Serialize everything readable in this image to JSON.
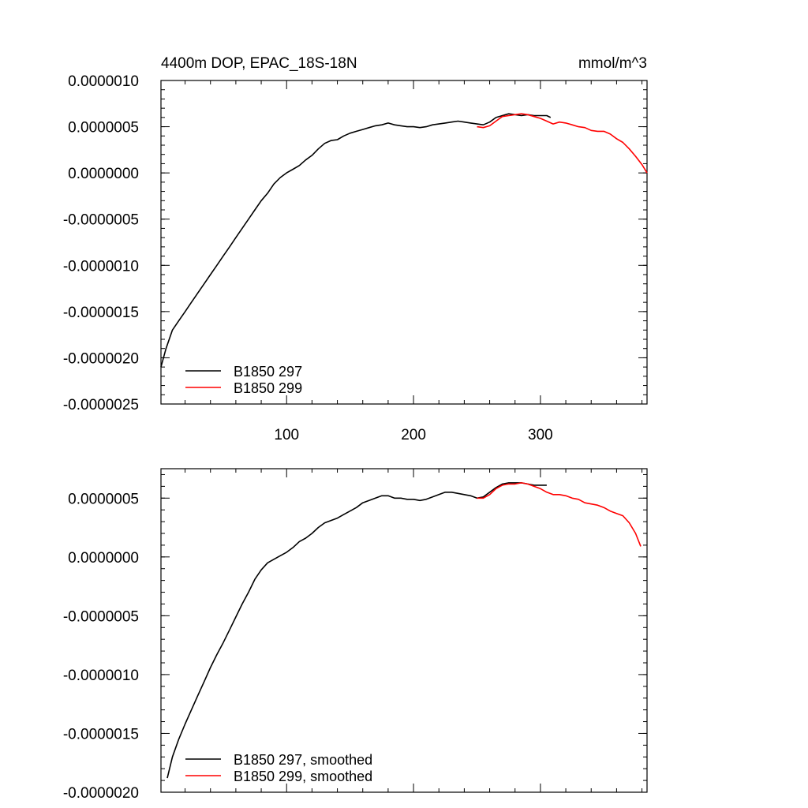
{
  "chart_data": [
    {
      "type": "line",
      "title": "4400m DOP, EPAC_18S-18N",
      "units": "mmol/m^3",
      "xlim": [
        1,
        384
      ],
      "ylim": [
        -2.5e-06,
        1e-06
      ],
      "xticks": [
        100,
        200,
        300
      ],
      "xtick_labels": [
        "100",
        "200",
        "300"
      ],
      "yticks": [
        -2.5e-06,
        -2e-06,
        -1.5e-06,
        -1e-06,
        -5e-07,
        0,
        5e-07,
        1e-06
      ],
      "ytick_labels": [
        "-0.0000025",
        "-0.0000020",
        "-0.0000015",
        "-0.0000010",
        "-0.0000005",
        "0.0000000",
        "0.0000005",
        "0.0000010"
      ],
      "legend": "bottom-left",
      "series": [
        {
          "name": "B1850 297",
          "color": "#000000",
          "x": [
            1,
            5,
            10,
            15,
            20,
            25,
            30,
            35,
            40,
            45,
            50,
            55,
            60,
            65,
            70,
            75,
            80,
            85,
            90,
            95,
            100,
            105,
            110,
            115,
            120,
            125,
            130,
            135,
            140,
            145,
            150,
            155,
            160,
            165,
            170,
            175,
            180,
            185,
            190,
            195,
            200,
            205,
            210,
            215,
            220,
            225,
            230,
            235,
            240,
            245,
            250,
            255,
            260,
            265,
            270,
            275,
            280,
            285,
            290,
            295,
            300,
            305,
            308
          ],
          "y": [
            -2.1e-06,
            -1.9e-06,
            -1.7e-06,
            -1.6e-06,
            -1.5e-06,
            -1.4e-06,
            -1.3e-06,
            -1.2e-06,
            -1.1e-06,
            -1e-06,
            -9e-07,
            -8e-07,
            -7e-07,
            -6e-07,
            -5e-07,
            -4e-07,
            -3e-07,
            -2.2e-07,
            -1.2e-07,
            -5e-08,
            0.0,
            4e-08,
            8e-08,
            1.4e-07,
            1.9e-07,
            2.6e-07,
            3.2e-07,
            3.5e-07,
            3.6e-07,
            4e-07,
            4.3e-07,
            4.5e-07,
            4.7e-07,
            4.9e-07,
            5.1e-07,
            5.2e-07,
            5.4e-07,
            5.2e-07,
            5.1e-07,
            5e-07,
            5e-07,
            4.9e-07,
            5e-07,
            5.2e-07,
            5.3e-07,
            5.4e-07,
            5.5e-07,
            5.6e-07,
            5.5e-07,
            5.4e-07,
            5.3e-07,
            5.2e-07,
            5.5e-07,
            6e-07,
            6.2e-07,
            6.4e-07,
            6.3e-07,
            6.2e-07,
            6.3e-07,
            6.2e-07,
            6.2e-07,
            6.2e-07,
            6e-07
          ]
        },
        {
          "name": "B1850 299",
          "color": "#ff0000",
          "x": [
            250,
            255,
            260,
            265,
            270,
            275,
            280,
            285,
            290,
            295,
            300,
            305,
            310,
            315,
            320,
            325,
            330,
            335,
            340,
            345,
            350,
            355,
            360,
            365,
            370,
            375,
            380,
            384
          ],
          "y": [
            5e-07,
            4.9e-07,
            5.1e-07,
            5.6e-07,
            6.1e-07,
            6.2e-07,
            6.3e-07,
            6.4e-07,
            6.3e-07,
            6.1e-07,
            5.9e-07,
            5.6e-07,
            5.3e-07,
            5.5e-07,
            5.4e-07,
            5.2e-07,
            5e-07,
            4.9e-07,
            4.6e-07,
            4.5e-07,
            4.5e-07,
            4.2e-07,
            3.7e-07,
            3.3e-07,
            2.6e-07,
            1.8e-07,
            9e-08,
            0.0
          ]
        }
      ]
    },
    {
      "type": "line",
      "xlim": [
        1,
        384
      ],
      "ylim": [
        -2e-06,
        7.5e-07
      ],
      "xticks": [
        100,
        200,
        300
      ],
      "yticks": [
        -2e-06,
        -1.5e-06,
        -1e-06,
        -5e-07,
        0,
        5e-07
      ],
      "ytick_labels": [
        "-0.0000020",
        "-0.0000015",
        "-0.0000010",
        "-0.0000005",
        "0.0000000",
        "0.0000005"
      ],
      "legend": "bottom-left",
      "series": [
        {
          "name": "B1850 297, smoothed",
          "color": "#000000",
          "x": [
            6,
            10,
            15,
            20,
            25,
            30,
            35,
            40,
            45,
            50,
            55,
            60,
            65,
            70,
            75,
            80,
            85,
            90,
            95,
            100,
            105,
            110,
            115,
            120,
            125,
            130,
            135,
            140,
            145,
            150,
            155,
            160,
            165,
            170,
            175,
            180,
            185,
            190,
            195,
            200,
            205,
            210,
            215,
            220,
            225,
            230,
            235,
            240,
            245,
            250,
            255,
            260,
            265,
            270,
            275,
            280,
            285,
            290,
            295,
            300,
            305
          ],
          "y": [
            -1.88e-06,
            -1.7e-06,
            -1.55e-06,
            -1.42e-06,
            -1.3e-06,
            -1.18e-06,
            -1.06e-06,
            -9.4e-07,
            -8.3e-07,
            -7.3e-07,
            -6.2e-07,
            -5.1e-07,
            -4e-07,
            -3e-07,
            -1.9e-07,
            -1.1e-07,
            -5e-08,
            -2e-08,
            1e-08,
            4e-08,
            8e-08,
            1.3e-07,
            1.6e-07,
            2e-07,
            2.5e-07,
            2.9e-07,
            3.1e-07,
            3.3e-07,
            3.6e-07,
            3.9e-07,
            4.2e-07,
            4.6e-07,
            4.8e-07,
            5e-07,
            5.2e-07,
            5.2e-07,
            5e-07,
            5e-07,
            4.9e-07,
            4.9e-07,
            4.8e-07,
            4.9e-07,
            5.1e-07,
            5.3e-07,
            5.5e-07,
            5.5e-07,
            5.4e-07,
            5.3e-07,
            5.2e-07,
            5e-07,
            5.1e-07,
            5.5e-07,
            5.9e-07,
            6.2e-07,
            6.3e-07,
            6.3e-07,
            6.3e-07,
            6.2e-07,
            6.1e-07,
            6.1e-07,
            6.1e-07
          ]
        },
        {
          "name": "B1850 299, smoothed",
          "color": "#ff0000",
          "x": [
            250,
            255,
            260,
            265,
            270,
            275,
            280,
            285,
            290,
            295,
            300,
            305,
            310,
            315,
            320,
            325,
            330,
            335,
            340,
            345,
            350,
            355,
            360,
            365,
            370,
            375,
            379
          ],
          "y": [
            5e-07,
            5e-07,
            5.3e-07,
            5.8e-07,
            6.1e-07,
            6.2e-07,
            6.2e-07,
            6.3e-07,
            6.2e-07,
            6e-07,
            5.8e-07,
            5.5e-07,
            5.3e-07,
            5.3e-07,
            5.2e-07,
            5e-07,
            4.9e-07,
            4.6e-07,
            4.5e-07,
            4.4e-07,
            4.2e-07,
            3.9e-07,
            3.7e-07,
            3.5e-07,
            2.9e-07,
            2e-07,
            9e-08
          ]
        }
      ]
    }
  ]
}
